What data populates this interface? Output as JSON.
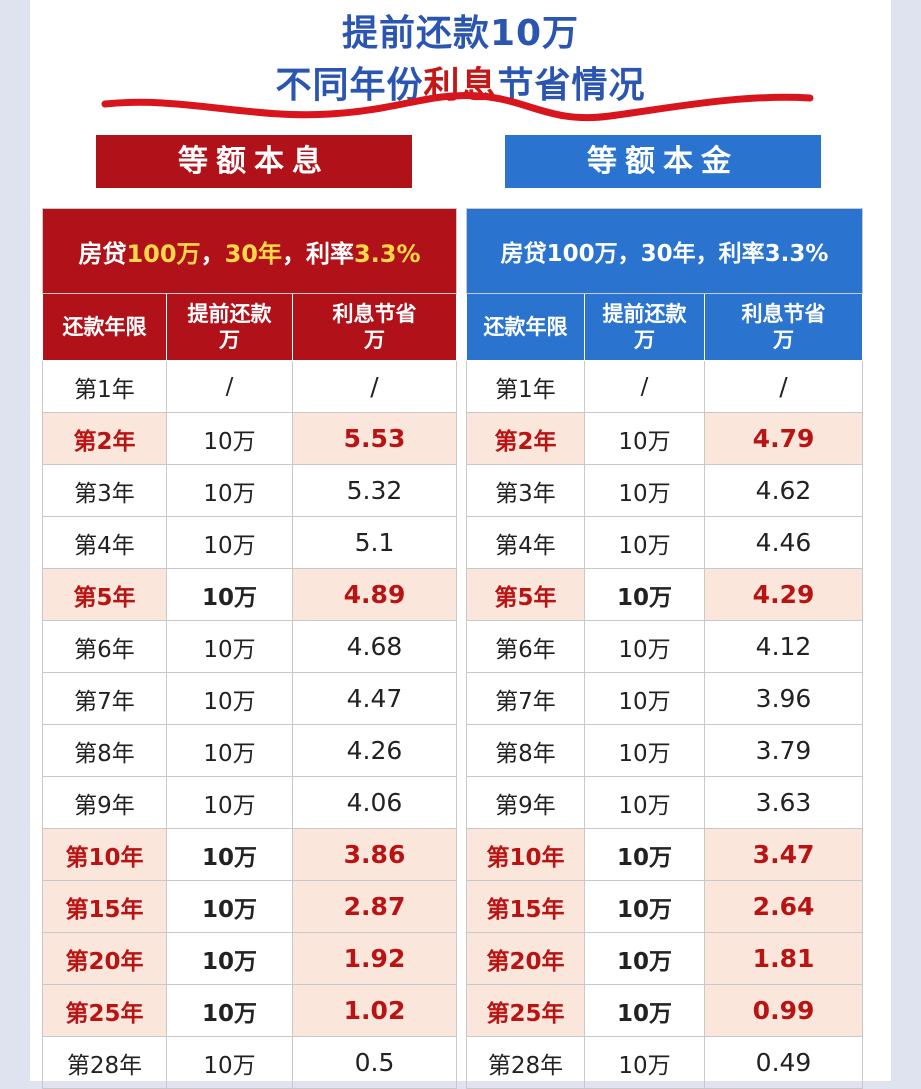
{
  "title_line1": "提前还款10万",
  "title_line2_a": "不同年份",
  "title_line2_b": "利息",
  "title_line2_c": "节省情况",
  "left": {
    "tab_label": "等额本息",
    "caption_a": "房贷",
    "caption_b": "100万",
    "caption_c": "，",
    "caption_d": "30年",
    "caption_e": "，利率",
    "caption_f": "3.3%",
    "headers": [
      "还款年限",
      "提前还款万",
      "利息节省万"
    ],
    "header_l1": [
      "还款年限",
      "提前还款",
      "利息节省"
    ],
    "header_l2": [
      "",
      "万",
      "万"
    ],
    "rows": [
      {
        "year": "第1年",
        "amount": "/",
        "saving": "/"
      },
      {
        "year": "第2年",
        "amount": "10万",
        "saving": "5.53"
      },
      {
        "year": "第3年",
        "amount": "10万",
        "saving": "5.32"
      },
      {
        "year": "第4年",
        "amount": "10万",
        "saving": "5.1"
      },
      {
        "year": "第5年",
        "amount": "10万",
        "saving": "4.89"
      },
      {
        "year": "第6年",
        "amount": "10万",
        "saving": "4.68"
      },
      {
        "year": "第7年",
        "amount": "10万",
        "saving": "4.47"
      },
      {
        "year": "第8年",
        "amount": "10万",
        "saving": "4.26"
      },
      {
        "year": "第9年",
        "amount": "10万",
        "saving": "4.06"
      },
      {
        "year": "第10年",
        "amount": "10万",
        "saving": "3.86"
      },
      {
        "year": "第15年",
        "amount": "10万",
        "saving": "2.87"
      },
      {
        "year": "第20年",
        "amount": "10万",
        "saving": "1.92"
      },
      {
        "year": "第25年",
        "amount": "10万",
        "saving": "1.02"
      },
      {
        "year": "第28年",
        "amount": "10万",
        "saving": "0.5"
      }
    ]
  },
  "right": {
    "tab_label": "等额本金",
    "caption": "房贷100万，30年，利率3.3%",
    "header_l1": [
      "还款年限",
      "提前还款",
      "利息节省"
    ],
    "header_l2": [
      "",
      "万",
      "万"
    ],
    "rows": [
      {
        "year": "第1年",
        "amount": "/",
        "saving": "/"
      },
      {
        "year": "第2年",
        "amount": "10万",
        "saving": "4.79"
      },
      {
        "year": "第3年",
        "amount": "10万",
        "saving": "4.62"
      },
      {
        "year": "第4年",
        "amount": "10万",
        "saving": "4.46"
      },
      {
        "year": "第5年",
        "amount": "10万",
        "saving": "4.29"
      },
      {
        "year": "第6年",
        "amount": "10万",
        "saving": "4.12"
      },
      {
        "year": "第7年",
        "amount": "10万",
        "saving": "3.96"
      },
      {
        "year": "第8年",
        "amount": "10万",
        "saving": "3.79"
      },
      {
        "year": "第9年",
        "amount": "10万",
        "saving": "3.63"
      },
      {
        "year": "第10年",
        "amount": "10万",
        "saving": "3.47"
      },
      {
        "year": "第15年",
        "amount": "10万",
        "saving": "2.64"
      },
      {
        "year": "第20年",
        "amount": "10万",
        "saving": "1.81"
      },
      {
        "year": "第25年",
        "amount": "10万",
        "saving": "0.99"
      },
      {
        "year": "第28年",
        "amount": "10万",
        "saving": "0.49"
      }
    ]
  },
  "colors": {
    "red": "#b1121a",
    "blue": "#2a74d0",
    "highlight_text": "#b81414",
    "highlight_bg": "#fbe6dc"
  }
}
